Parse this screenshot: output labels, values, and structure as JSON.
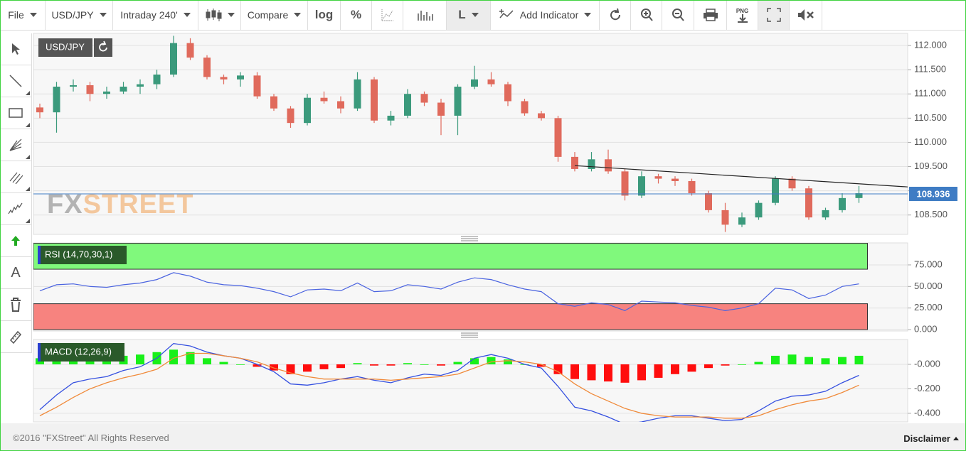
{
  "toolbar": {
    "file": "File",
    "symbol": "USD/JPY",
    "interval": "Intraday 240'",
    "compare": "Compare",
    "log": "log",
    "percent": "%",
    "line_style": "L",
    "add_indicator": "Add Indicator",
    "png": "PNG"
  },
  "tools": {
    "text": "A"
  },
  "watermark": [
    "FX",
    "STREET"
  ],
  "footer": {
    "copyright": "©2016 \"FXStreet\" All Rights Reserved",
    "disclaimer": "Disclaimer"
  },
  "chart_data": [
    {
      "type": "candlestick",
      "label": "USD/JPY",
      "open": [
        110.72,
        110.62,
        111.15,
        111.18,
        111.0,
        111.05,
        111.15,
        111.2,
        111.4,
        112.05,
        111.75,
        111.35,
        111.3,
        111.38,
        110.95,
        110.7,
        110.4,
        110.92,
        110.85,
        110.7,
        111.3,
        110.45,
        110.55,
        111.0,
        110.82,
        110.55,
        111.15,
        111.3,
        111.2,
        110.85,
        110.6,
        110.5,
        109.7,
        109.45,
        109.65,
        109.4,
        108.9,
        109.3,
        109.25,
        109.2,
        108.95,
        108.6,
        108.3,
        108.45,
        108.75,
        109.25,
        109.05,
        108.45,
        108.6,
        108.85
      ],
      "high": [
        110.8,
        111.25,
        111.3,
        111.25,
        111.15,
        111.25,
        111.3,
        111.5,
        112.2,
        112.15,
        111.8,
        111.4,
        111.45,
        111.45,
        111.0,
        110.75,
        111.0,
        111.05,
        110.95,
        111.45,
        111.35,
        110.65,
        111.1,
        111.05,
        110.9,
        111.2,
        111.58,
        111.45,
        111.25,
        110.9,
        110.65,
        110.55,
        109.8,
        109.8,
        109.85,
        109.45,
        109.4,
        109.35,
        109.3,
        109.25,
        109.0,
        108.75,
        108.55,
        108.8,
        109.3,
        109.3,
        109.1,
        108.65,
        108.95,
        109.1
      ],
      "low": [
        110.5,
        110.2,
        111.05,
        110.85,
        110.9,
        111.0,
        111.0,
        111.1,
        111.35,
        111.7,
        111.3,
        111.2,
        111.15,
        110.9,
        110.65,
        110.3,
        110.35,
        110.8,
        110.6,
        110.65,
        110.4,
        110.35,
        110.5,
        110.75,
        110.15,
        110.15,
        111.1,
        111.15,
        110.75,
        110.55,
        110.45,
        109.6,
        109.4,
        109.4,
        109.35,
        108.8,
        108.85,
        109.15,
        109.1,
        108.9,
        108.55,
        108.15,
        108.25,
        108.4,
        108.7,
        109.0,
        108.4,
        108.4,
        108.55,
        108.75
      ],
      "close": [
        110.62,
        111.15,
        111.18,
        111.0,
        111.05,
        111.15,
        111.2,
        111.4,
        112.05,
        111.75,
        111.35,
        111.3,
        111.38,
        110.95,
        110.7,
        110.4,
        110.92,
        110.85,
        110.7,
        111.3,
        110.45,
        110.55,
        111.0,
        110.82,
        110.55,
        111.15,
        111.3,
        111.2,
        110.85,
        110.6,
        110.5,
        109.7,
        109.45,
        109.65,
        109.4,
        108.9,
        109.3,
        109.25,
        109.2,
        108.95,
        108.6,
        108.3,
        108.45,
        108.75,
        109.25,
        109.05,
        108.45,
        108.6,
        108.85,
        108.95
      ],
      "up_color": "#3b9a7c",
      "down_color": "#e06a5c",
      "last_price": 108.936,
      "last_price_color": "#3f7cc4",
      "trendline": {
        "values": [
          109.52,
          109.08
        ],
        "color": "#222222"
      },
      "ylim": [
        108.1,
        112.25
      ],
      "yticks": [
        {
          "value": 108.5,
          "label": "108.500"
        },
        {
          "value": 109,
          "label": "109.000"
        },
        {
          "value": 109.5,
          "label": "109.500"
        },
        {
          "value": 110,
          "label": "110.000"
        },
        {
          "value": 110.5,
          "label": "110.500"
        },
        {
          "value": 111,
          "label": "111.000"
        },
        {
          "value": 111.5,
          "label": "111.500"
        },
        {
          "value": 112,
          "label": "112.000"
        }
      ],
      "grid": true
    },
    {
      "type": "line",
      "label": "RSI (14,70,30,1)",
      "series": [
        {
          "color": "#4a63e0",
          "values": [
            45,
            52,
            53,
            50,
            49,
            52,
            54,
            58,
            66,
            62,
            55,
            52,
            51,
            48,
            44,
            38,
            46,
            47,
            45,
            54,
            44,
            45,
            52,
            50,
            47,
            55,
            60,
            58,
            52,
            47,
            44,
            30,
            27,
            31,
            29,
            22,
            33,
            32,
            31,
            28,
            26,
            22,
            25,
            30,
            48,
            46,
            36,
            40,
            50,
            53
          ]
        }
      ],
      "zones": [
        {
          "from": 70,
          "to": 100,
          "color": "#80f97c"
        },
        {
          "from": 0,
          "to": 30,
          "color": "#f7837f"
        }
      ],
      "ylim": [
        -1.6,
        100.5
      ],
      "yticks": [
        {
          "value": 0,
          "label": "0.000"
        },
        {
          "value": 25,
          "label": "25.000"
        },
        {
          "value": 50,
          "label": "50.000"
        },
        {
          "value": 75,
          "label": "75.000"
        }
      ],
      "grid": true
    },
    {
      "type": "macd",
      "label": "MACD (12,26,9)",
      "series": [
        {
          "type": "bar",
          "color": "#19f019",
          "negative_color": "#ff0d0d",
          "values": [
            0.05,
            0.06,
            0.07,
            0.06,
            0.06,
            0.07,
            0.08,
            0.1,
            0.12,
            0.1,
            0.05,
            0.02,
            0,
            -0.02,
            -0.05,
            -0.08,
            -0.06,
            -0.04,
            -0.03,
            0.01,
            -0.01,
            -0.01,
            0.01,
            0,
            -0.01,
            0.02,
            0.05,
            0.06,
            0.04,
            0,
            -0.02,
            -0.08,
            -0.12,
            -0.13,
            -0.14,
            -0.15,
            -0.13,
            -0.11,
            -0.08,
            -0.06,
            -0.03,
            -0.01,
            0,
            0.02,
            0.07,
            0.08,
            0.06,
            0.05,
            0.06,
            0.07
          ]
        },
        {
          "type": "line",
          "color": "#3550e0",
          "values": [
            -0.37,
            -0.25,
            -0.15,
            -0.12,
            -0.1,
            -0.05,
            -0.02,
            0.05,
            0.17,
            0.15,
            0.1,
            0.07,
            0.05,
            0,
            -0.06,
            -0.16,
            -0.17,
            -0.15,
            -0.12,
            -0.1,
            -0.13,
            -0.15,
            -0.11,
            -0.08,
            -0.09,
            -0.05,
            0.05,
            0.08,
            0.05,
            0,
            -0.03,
            -0.18,
            -0.35,
            -0.38,
            -0.43,
            -0.49,
            -0.47,
            -0.44,
            -0.42,
            -0.42,
            -0.44,
            -0.46,
            -0.45,
            -0.38,
            -0.3,
            -0.26,
            -0.25,
            -0.22,
            -0.15,
            -0.09
          ]
        },
        {
          "type": "line",
          "color": "#f08a3a",
          "values": [
            -0.42,
            -0.35,
            -0.27,
            -0.2,
            -0.15,
            -0.11,
            -0.08,
            -0.04,
            0.05,
            0.09,
            0.09,
            0.07,
            0.05,
            0.02,
            -0.03,
            -0.07,
            -0.1,
            -0.12,
            -0.12,
            -0.12,
            -0.12,
            -0.13,
            -0.12,
            -0.11,
            -0.1,
            -0.08,
            -0.03,
            0.02,
            0.03,
            0.02,
            0,
            -0.06,
            -0.16,
            -0.24,
            -0.3,
            -0.36,
            -0.4,
            -0.42,
            -0.43,
            -0.43,
            -0.43,
            -0.44,
            -0.44,
            -0.42,
            -0.37,
            -0.33,
            -0.3,
            -0.28,
            -0.23,
            -0.17
          ]
        }
      ],
      "ylim": [
        -0.47,
        0.203
      ],
      "yticks": [
        {
          "value": -0.4,
          "label": "-0.400"
        },
        {
          "value": -0.2,
          "label": "-0.200"
        },
        {
          "value": 0,
          "label": "-0.000"
        }
      ],
      "grid": true
    }
  ]
}
